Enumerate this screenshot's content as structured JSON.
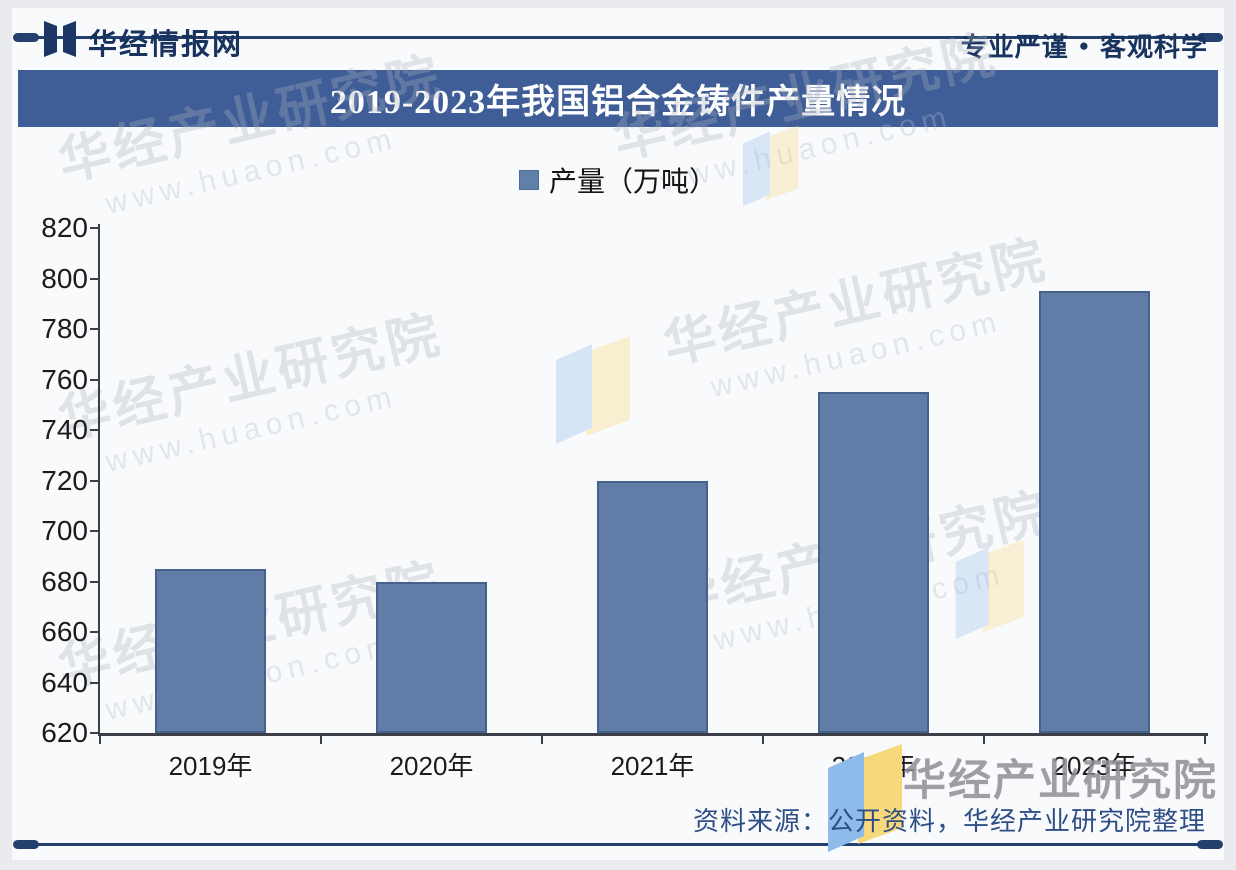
{
  "page": {
    "background": "#e9ebef",
    "canvas_background": "#f9fafc",
    "accent_navy": "#24406f"
  },
  "header": {
    "brand": "华经情报网",
    "tagline_left": "专业严谨",
    "tagline_bullet": "●",
    "tagline_right": "客观科学"
  },
  "title_bar": {
    "text": "2019-2023年我国铝合金铸件产量情况",
    "background": "#3f5e98",
    "text_color": "#ffffff"
  },
  "legend": {
    "label": "产量（万吨）",
    "swatch_color": "#6080aa"
  },
  "chart_data": {
    "type": "bar",
    "title": "2019-2023年我国铝合金铸件产量情况",
    "categories": [
      "2019年",
      "2020年",
      "2021年",
      "2022年",
      "2023年"
    ],
    "series": [
      {
        "name": "产量（万吨）",
        "values": [
          685,
          680,
          720,
          755,
          795
        ]
      }
    ],
    "xlabel": "",
    "ylabel": "",
    "ylim": [
      620,
      820
    ],
    "yticks": [
      620,
      640,
      660,
      680,
      700,
      720,
      740,
      760,
      780,
      800,
      820
    ],
    "grid": false,
    "legend_position": "top",
    "bar_color": "#617ca6",
    "bar_border_color": "#46628c"
  },
  "watermark": {
    "text": "华经产业研究院",
    "url": "www.huaon.com"
  },
  "footer": {
    "source": "资料来源：公开资料，华经产业研究院整理",
    "logo_text": "华经产业研究院",
    "logo_blue": "#8fbbea",
    "logo_yellow": "#f7d87a"
  }
}
